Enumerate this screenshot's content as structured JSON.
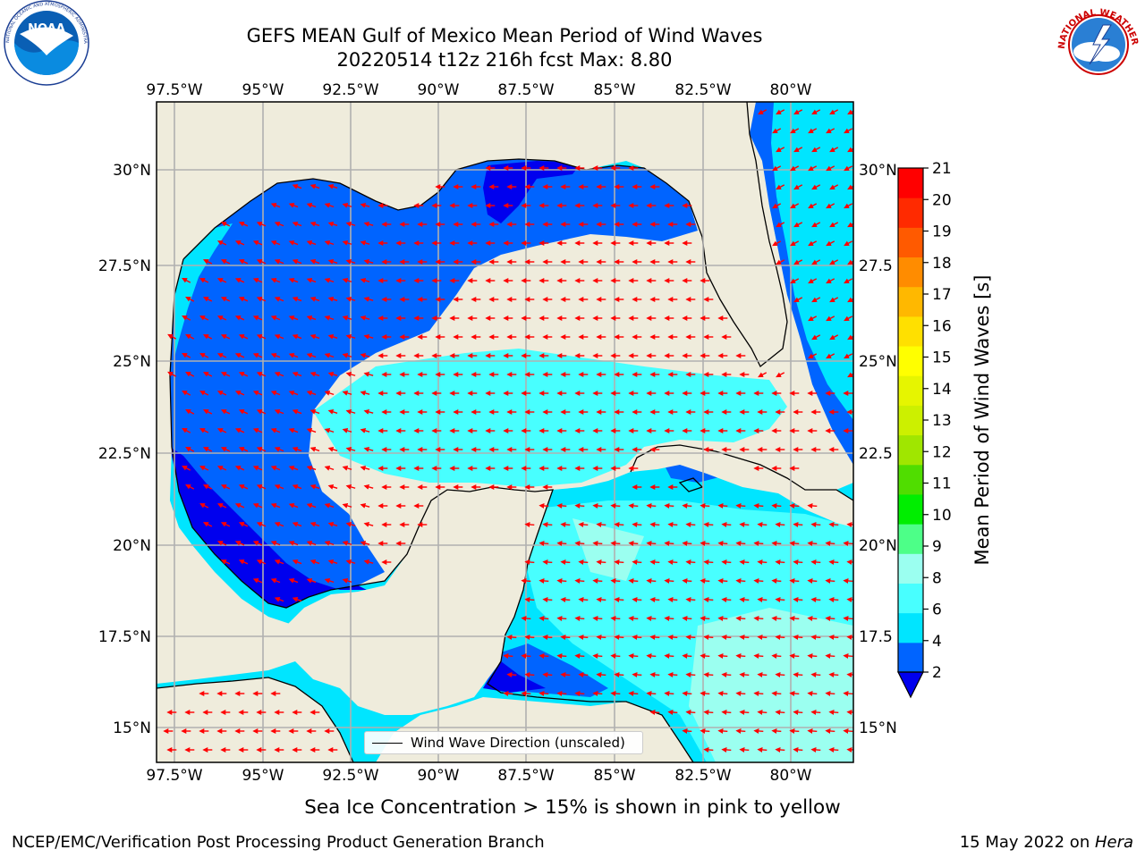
{
  "figure": {
    "title_line1": "GEFS MEAN Gulf of Mexico Mean Period of Wind Waves",
    "title_line2": "20220514 t12z 216h fcst   Max: 8.80",
    "subtitle": "Sea Ice Concentration > 15% is shown in pink to yellow",
    "credit": "NCEP/EMC/Verification Post Processing Product Generation Branch",
    "date_prefix": "15 May 2022 on ",
    "date_machine": "Hera",
    "legend_label": "Wind Wave Direction (unscaled)"
  },
  "logos": {
    "noaa": {
      "text": "NOAA",
      "ring_text": "NATIONAL OCEANIC AND ATMOSPHERIC ADMINISTRATION • U.S. DEPARTMENT OF COMMERCE"
    },
    "nws": {
      "ring_text": "NATIONAL WEATHER SERVICE"
    }
  },
  "map": {
    "lon_labels": [
      "97.5°W",
      "95°W",
      "92.5°W",
      "90°W",
      "87.5°W",
      "85°W",
      "82.5°W",
      "80°W"
    ],
    "lat_labels_left": [
      "30°N",
      "27.5°N",
      "25°N",
      "22.5°N",
      "20°N",
      "17.5°N",
      "15°N"
    ],
    "lat_labels_right": [
      "30°N",
      "27.5",
      "25°N",
      "22.5",
      "20°N",
      "17.5",
      "15°N"
    ],
    "land_color": "#efecdc",
    "arrow_color": "#ff0000",
    "grid_color": "#b0b0b0"
  },
  "colorbar": {
    "label": "Mean Period of Wind Waves [s]",
    "ticks": [
      "2",
      "4",
      "6",
      "8",
      "9",
      "10",
      "11",
      "12",
      "13",
      "14",
      "15",
      "16",
      "17",
      "18",
      "19",
      "20",
      "21"
    ],
    "colors": [
      "#0064ff",
      "#00e5ff",
      "#48ffff",
      "#9bfff0",
      "#4dff88",
      "#00ee00",
      "#50dd00",
      "#a0e600",
      "#ccf000",
      "#e6f500",
      "#ffff00",
      "#ffe000",
      "#ffb800",
      "#ff8c00",
      "#ff5a00",
      "#ff2a00",
      "#ff0000"
    ],
    "under_color": "#0000ee"
  }
}
